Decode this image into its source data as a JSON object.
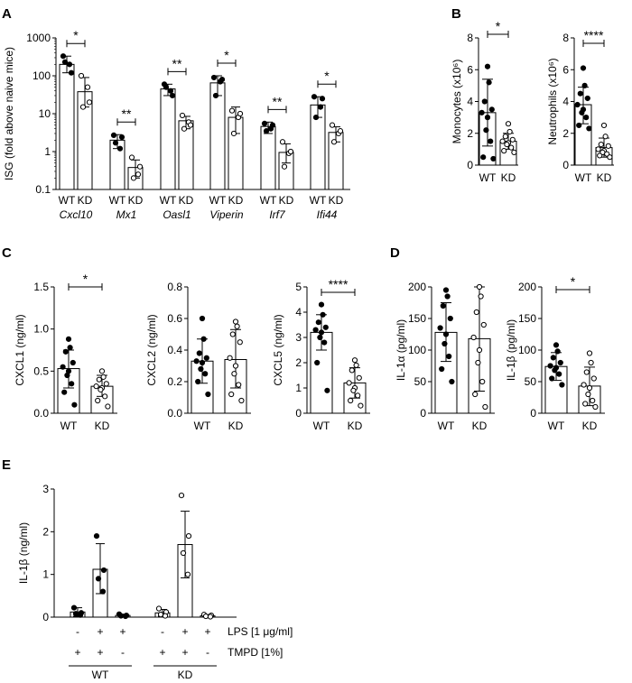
{
  "panels": [
    {
      "id": "A",
      "label": "A"
    },
    {
      "id": "B",
      "label": "B"
    },
    {
      "id": "C",
      "label": "C"
    },
    {
      "id": "D",
      "label": "D"
    },
    {
      "id": "E",
      "label": "E"
    }
  ],
  "chart_data": [
    {
      "panel": "A",
      "type": "bar",
      "scale": "log",
      "ylabel": "ISG (fold above naive mice)",
      "yticks": [
        "0.1",
        "1",
        "10",
        "100",
        "1000"
      ],
      "ylim": [
        0.1,
        1000
      ],
      "groups": [
        {
          "gene": "Cxcl10",
          "wt": {
            "mean": 200,
            "err_lo": 120,
            "err_hi": 330,
            "points": [
              330,
              200,
              230,
              120
            ]
          },
          "kd": {
            "mean": 38,
            "err_lo": 15,
            "err_hi": 90,
            "points": [
              100,
              50,
              15,
              20
            ]
          },
          "sig": "*"
        },
        {
          "gene": "Mx1",
          "wt": {
            "mean": 2.0,
            "err_lo": 1.2,
            "err_hi": 2.8,
            "points": [
              2.7,
              1.2,
              1.7,
              2.4
            ]
          },
          "kd": {
            "mean": 0.38,
            "err_lo": 0.2,
            "err_hi": 0.6,
            "points": [
              0.7,
              0.25,
              0.2,
              0.4
            ]
          },
          "sig": "**"
        },
        {
          "gene": "Oasl1",
          "wt": {
            "mean": 45,
            "err_lo": 30,
            "err_hi": 60,
            "points": [
              60,
              40,
              50,
              30
            ]
          },
          "kd": {
            "mean": 6.5,
            "err_lo": 4,
            "err_hi": 8.5,
            "points": [
              9,
              6,
              4,
              5
            ]
          },
          "sig": "**"
        },
        {
          "gene": "Viperin",
          "wt": {
            "mean": 65,
            "err_lo": 30,
            "err_hi": 100,
            "points": [
              90,
              70,
              30,
              80
            ]
          },
          "kd": {
            "mean": 8,
            "err_lo": 3,
            "err_hi": 15,
            "points": [
              12,
              8,
              3,
              10
            ]
          },
          "sig": "*"
        },
        {
          "gene": "Irf7",
          "wt": {
            "mean": 4.6,
            "err_lo": 3,
            "err_hi": 6,
            "points": [
              5.5,
              4,
              3.5,
              5
            ]
          },
          "kd": {
            "mean": 0.95,
            "err_lo": 0.5,
            "err_hi": 1.6,
            "points": [
              1.8,
              0.9,
              0.4,
              1
            ]
          },
          "sig": "**"
        },
        {
          "gene": "Ifi44",
          "wt": {
            "mean": 17,
            "err_lo": 8,
            "err_hi": 28,
            "points": [
              28,
              15,
              8,
              25
            ]
          },
          "kd": {
            "mean": 3.2,
            "err_lo": 1.8,
            "err_hi": 4.5,
            "points": [
              5,
              3,
              1.8,
              3.5
            ]
          },
          "sig": "*"
        }
      ],
      "categories": [
        "WT",
        "KD"
      ]
    },
    {
      "panel": "B1",
      "type": "bar",
      "ylabel": "Monocytes (x10⁶)",
      "yticks": [
        "0",
        "2",
        "4",
        "6",
        "8"
      ],
      "ylim": [
        0,
        8
      ],
      "categories": [
        "WT",
        "KD"
      ],
      "wt": {
        "mean": 3.3,
        "err_lo": 1.2,
        "err_hi": 5.4,
        "points": [
          6.2,
          5.2,
          4.0,
          3.5,
          3.3,
          3.0,
          2.2,
          1.5,
          0.5,
          0.4
        ]
      },
      "kd": {
        "mean": 1.5,
        "err_lo": 1.0,
        "err_hi": 2.0,
        "points": [
          2.6,
          2.1,
          1.8,
          1.6,
          1.5,
          1.4,
          1.3,
          1.1,
          0.9,
          0.8
        ]
      },
      "sig": "*"
    },
    {
      "panel": "B2",
      "type": "bar",
      "ylabel": "Neutrophils (x10⁶)",
      "yticks": [
        "0",
        "2",
        "4",
        "6",
        "8"
      ],
      "ylim": [
        0,
        8
      ],
      "categories": [
        "WT",
        "KD"
      ],
      "wt": {
        "mean": 3.8,
        "err_lo": 2.6,
        "err_hi": 4.9,
        "points": [
          6.1,
          5.0,
          4.5,
          4.2,
          3.8,
          3.5,
          3.3,
          3.0,
          2.5,
          2.3
        ]
      },
      "kd": {
        "mean": 1.1,
        "err_lo": 0.5,
        "err_hi": 1.7,
        "points": [
          2.5,
          1.8,
          1.3,
          1.2,
          1.0,
          0.9,
          0.8,
          0.7,
          0.6,
          0.5
        ]
      },
      "sig": "****"
    },
    {
      "panel": "C1",
      "type": "bar",
      "ylabel": "CXCL1 (ng/ml)",
      "yticks": [
        "0.0",
        "0.5",
        "1.0",
        "1.5"
      ],
      "ylim": [
        0,
        1.5
      ],
      "categories": [
        "WT",
        "KD"
      ],
      "wt": {
        "mean": 0.53,
        "err_lo": 0.3,
        "err_hi": 0.75,
        "points": [
          0.88,
          0.78,
          0.73,
          0.6,
          0.55,
          0.5,
          0.45,
          0.35,
          0.25,
          0.1
        ]
      },
      "kd": {
        "mean": 0.32,
        "err_lo": 0.2,
        "err_hi": 0.45,
        "points": [
          0.5,
          0.43,
          0.4,
          0.35,
          0.32,
          0.3,
          0.28,
          0.2,
          0.15,
          0.08
        ]
      },
      "sig": "*"
    },
    {
      "panel": "C2",
      "type": "bar",
      "ylabel": "CXCL2 (ng/ml)",
      "yticks": [
        "0.0",
        "0.2",
        "0.4",
        "0.6",
        "0.8"
      ],
      "ylim": [
        0,
        0.8
      ],
      "categories": [
        "WT",
        "KD"
      ],
      "wt": {
        "mean": 0.33,
        "err_lo": 0.19,
        "err_hi": 0.47,
        "points": [
          0.6,
          0.47,
          0.38,
          0.35,
          0.33,
          0.32,
          0.28,
          0.25,
          0.2,
          0.12
        ]
      },
      "kd": {
        "mean": 0.34,
        "err_lo": 0.16,
        "err_hi": 0.53,
        "points": [
          0.58,
          0.55,
          0.5,
          0.45,
          0.35,
          0.3,
          0.25,
          0.18,
          0.12,
          0.08
        ]
      },
      "sig": ""
    },
    {
      "panel": "C3",
      "type": "bar",
      "ylabel": "CXCL5 (ng/ml)",
      "yticks": [
        "0",
        "1",
        "2",
        "3",
        "4",
        "5"
      ],
      "ylim": [
        0,
        5
      ],
      "categories": [
        "WT",
        "KD"
      ],
      "wt": {
        "mean": 3.2,
        "err_lo": 2.5,
        "err_hi": 3.9,
        "points": [
          4.3,
          3.9,
          3.6,
          3.4,
          3.3,
          3.2,
          3.0,
          2.8,
          2.0,
          0.9
        ]
      },
      "kd": {
        "mean": 1.2,
        "err_lo": 0.6,
        "err_hi": 1.8,
        "points": [
          2.1,
          1.9,
          1.7,
          1.4,
          1.2,
          1.0,
          0.9,
          0.7,
          0.5,
          0.3
        ]
      },
      "sig": "****"
    },
    {
      "panel": "D1",
      "type": "bar",
      "ylabel": "IL-1α (pg/ml)",
      "yticks": [
        "0",
        "50",
        "100",
        "150",
        "200"
      ],
      "ylim": [
        0,
        200
      ],
      "categories": [
        "WT",
        "KD"
      ],
      "wt": {
        "mean": 128,
        "err_lo": 82,
        "err_hi": 175,
        "points": [
          195,
          185,
          170,
          150,
          135,
          125,
          110,
          90,
          70,
          50
        ]
      },
      "kd": {
        "mean": 118,
        "err_lo": 35,
        "err_hi": 200,
        "points": [
          200,
          185,
          160,
          140,
          120,
          100,
          80,
          50,
          30,
          10
        ]
      },
      "sig": ""
    },
    {
      "panel": "D2",
      "type": "bar",
      "ylabel": "IL-1β (pg/ml)",
      "yticks": [
        "0",
        "50",
        "100",
        "150",
        "200"
      ],
      "ylim": [
        0,
        200
      ],
      "categories": [
        "WT",
        "KD"
      ],
      "wt": {
        "mean": 74,
        "err_lo": 52,
        "err_hi": 96,
        "points": [
          108,
          98,
          88,
          80,
          75,
          72,
          68,
          62,
          55,
          45
        ]
      },
      "kd": {
        "mean": 43,
        "err_lo": 12,
        "err_hi": 73,
        "points": [
          95,
          80,
          65,
          55,
          45,
          40,
          30,
          20,
          15,
          10
        ]
      },
      "sig": "*"
    },
    {
      "panel": "E",
      "type": "bar",
      "ylabel": "IL-1β (ng/ml)",
      "yticks": [
        "0",
        "1",
        "2",
        "3"
      ],
      "ylim": [
        0,
        3
      ],
      "conditions": [
        {
          "group": "WT",
          "lps": "-",
          "tmpd": "+",
          "mean": 0.12,
          "err_lo": 0.02,
          "err_hi": 0.22,
          "points": [
            0.22,
            0.1,
            0.08,
            0.05
          ]
        },
        {
          "group": "WT",
          "lps": "+",
          "tmpd": "+",
          "mean": 1.12,
          "err_lo": 0.55,
          "err_hi": 1.72,
          "points": [
            1.9,
            1.1,
            0.9,
            0.6
          ]
        },
        {
          "group": "WT",
          "lps": "+",
          "tmpd": "-",
          "mean": 0.04,
          "err_lo": 0.02,
          "err_hi": 0.07,
          "points": [
            0.07,
            0.04,
            0.03,
            0.02
          ]
        },
        {
          "group": "KD",
          "lps": "-",
          "tmpd": "+",
          "mean": 0.1,
          "err_lo": 0.02,
          "err_hi": 0.18,
          "points": [
            0.2,
            0.12,
            0.06,
            0.03
          ]
        },
        {
          "group": "KD",
          "lps": "+",
          "tmpd": "+",
          "mean": 1.7,
          "err_lo": 0.92,
          "err_hi": 2.48,
          "points": [
            2.85,
            1.9,
            1.5,
            1.0
          ]
        },
        {
          "group": "KD",
          "lps": "+",
          "tmpd": "-",
          "mean": 0.03,
          "err_lo": 0.01,
          "err_hi": 0.06,
          "points": [
            0.06,
            0.04,
            0.02,
            0.01
          ]
        }
      ],
      "row_labels": {
        "lps": "LPS [1 μg/ml]",
        "tmpd": "TMPD [1%]"
      },
      "group_labels": [
        "WT",
        "KD"
      ]
    }
  ]
}
